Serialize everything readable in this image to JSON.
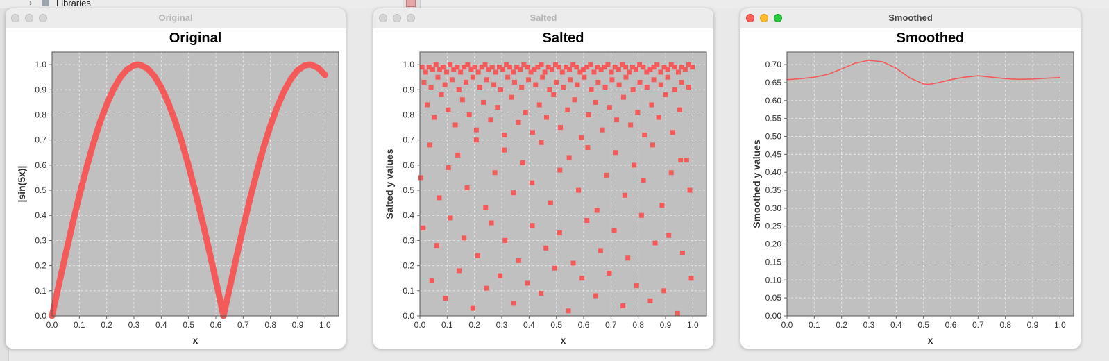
{
  "background": {
    "tree_item_label": "Libraries"
  },
  "colors": {
    "plot_bg": "#c0c0c0",
    "series": "#f55a5a",
    "grid": "#e6e6e6"
  },
  "windows": [
    {
      "title": "Original",
      "active": false
    },
    {
      "title": "Salted",
      "active": false
    },
    {
      "title": "Smoothed",
      "active": true
    }
  ],
  "chart_data": [
    {
      "type": "line",
      "title": "Original",
      "xlabel": "x",
      "ylabel": "|sin(5x)|",
      "xlim": [
        0,
        1.05
      ],
      "ylim": [
        0,
        1.05
      ],
      "x_ticks": [
        "0.0",
        "0.1",
        "0.2",
        "0.3",
        "0.4",
        "0.5",
        "0.6",
        "0.7",
        "0.8",
        "0.9",
        "1.0"
      ],
      "y_ticks": [
        "0.0",
        "0.1",
        "0.2",
        "0.3",
        "0.4",
        "0.5",
        "0.6",
        "0.7",
        "0.8",
        "0.9",
        "1.0"
      ],
      "grid": true,
      "series": [
        {
          "x": [
            0.0,
            0.025,
            0.05,
            0.075,
            0.1,
            0.125,
            0.15,
            0.175,
            0.2,
            0.225,
            0.25,
            0.275,
            0.3,
            0.314,
            0.325,
            0.35,
            0.375,
            0.4,
            0.425,
            0.45,
            0.475,
            0.5,
            0.525,
            0.55,
            0.575,
            0.6,
            0.628,
            0.65,
            0.675,
            0.7,
            0.725,
            0.75,
            0.775,
            0.8,
            0.825,
            0.85,
            0.875,
            0.9,
            0.925,
            0.942,
            0.95,
            0.975,
            1.0
          ],
          "y": [
            0.0,
            0.124,
            0.247,
            0.366,
            0.479,
            0.585,
            0.682,
            0.768,
            0.841,
            0.902,
            0.949,
            0.981,
            0.997,
            1.0,
            0.998,
            0.984,
            0.954,
            0.909,
            0.85,
            0.778,
            0.694,
            0.598,
            0.493,
            0.381,
            0.262,
            0.141,
            0.0,
            0.108,
            0.231,
            0.351,
            0.465,
            0.572,
            0.67,
            0.757,
            0.832,
            0.894,
            0.943,
            0.978,
            0.996,
            1.0,
            0.999,
            0.987,
            0.959
          ]
        }
      ]
    },
    {
      "type": "scatter",
      "title": "Salted",
      "xlabel": "x",
      "ylabel": "Salted y values",
      "xlim": [
        0,
        1.05
      ],
      "ylim": [
        0,
        1.05
      ],
      "x_ticks": [
        "0.0",
        "0.1",
        "0.2",
        "0.3",
        "0.4",
        "0.5",
        "0.6",
        "0.7",
        "0.8",
        "0.9",
        "1.0"
      ],
      "y_ticks": [
        "0.0",
        "0.1",
        "0.2",
        "0.3",
        "0.4",
        "0.5",
        "0.6",
        "0.7",
        "0.8",
        "0.9",
        "1.0"
      ],
      "grid": true,
      "series": [
        {
          "x": [
            0.008,
            0.021,
            0.034,
            0.047,
            0.059,
            0.072,
            0.085,
            0.098,
            0.111,
            0.124,
            0.137,
            0.149,
            0.162,
            0.175,
            0.188,
            0.201,
            0.214,
            0.227,
            0.239,
            0.252,
            0.265,
            0.278,
            0.291,
            0.304,
            0.317,
            0.329,
            0.342,
            0.355,
            0.368,
            0.381,
            0.394,
            0.407,
            0.419,
            0.432,
            0.445,
            0.458,
            0.471,
            0.484,
            0.497,
            0.509,
            0.522,
            0.535,
            0.548,
            0.561,
            0.574,
            0.587,
            0.599,
            0.612,
            0.625,
            0.638,
            0.651,
            0.664,
            0.677,
            0.689,
            0.702,
            0.715,
            0.728,
            0.741,
            0.754,
            0.767,
            0.779,
            0.792,
            0.805,
            0.818,
            0.831,
            0.844,
            0.857,
            0.869,
            0.882,
            0.895,
            0.908,
            0.921,
            0.934,
            0.947,
            0.959,
            0.972,
            0.985,
            0.998,
            0.015,
            0.041,
            0.066,
            0.092,
            0.118,
            0.143,
            0.169,
            0.194,
            0.22,
            0.245,
            0.271,
            0.296,
            0.322,
            0.347,
            0.373,
            0.398,
            0.424,
            0.449,
            0.475,
            0.5,
            0.526,
            0.551,
            0.577,
            0.602,
            0.628,
            0.653,
            0.679,
            0.704,
            0.73,
            0.755,
            0.781,
            0.806,
            0.832,
            0.857,
            0.883,
            0.908,
            0.934,
            0.959,
            0.985,
            0.027,
            0.053,
            0.079,
            0.104,
            0.13,
            0.156,
            0.181,
            0.207,
            0.233,
            0.259,
            0.284,
            0.31,
            0.336,
            0.361,
            0.387,
            0.413,
            0.438,
            0.464,
            0.49,
            0.515,
            0.541,
            0.567,
            0.592,
            0.618,
            0.644,
            0.669,
            0.695,
            0.721,
            0.746,
            0.772,
            0.798,
            0.823,
            0.849,
            0.875,
            0.9,
            0.926,
            0.952,
            0.977,
            0.003,
            0.037,
            0.071,
            0.105,
            0.139,
            0.173,
            0.207,
            0.241,
            0.275,
            0.309,
            0.343,
            0.377,
            0.411,
            0.445,
            0.479,
            0.513,
            0.547,
            0.581,
            0.615,
            0.649,
            0.683,
            0.717,
            0.751,
            0.785,
            0.819,
            0.853,
            0.887,
            0.921,
            0.955,
            0.989,
            0.012,
            0.062,
            0.112,
            0.162,
            0.212,
            0.262,
            0.312,
            0.362,
            0.412,
            0.462,
            0.512,
            0.562,
            0.612,
            0.662,
            0.712,
            0.762,
            0.812,
            0.862,
            0.912,
            0.962,
            0.044,
            0.094,
            0.144,
            0.194,
            0.244,
            0.294,
            0.344,
            0.394,
            0.444,
            0.494,
            0.544,
            0.594,
            0.644,
            0.694,
            0.744,
            0.794,
            0.844,
            0.894,
            0.944,
            0.994
          ],
          "y": [
            0.99,
            0.97,
            0.99,
            0.98,
            1.0,
            0.98,
            0.99,
            0.97,
            1.0,
            0.98,
            0.99,
            0.97,
            0.99,
            1.0,
            0.98,
            0.99,
            0.97,
            0.99,
            1.0,
            0.98,
            0.99,
            0.97,
            0.99,
            0.98,
            1.0,
            0.99,
            0.97,
            0.99,
            0.98,
            1.0,
            0.99,
            0.97,
            0.98,
            0.99,
            1.0,
            0.97,
            0.99,
            0.98,
            1.0,
            0.99,
            0.97,
            0.99,
            0.98,
            1.0,
            0.99,
            0.97,
            0.98,
            0.99,
            1.0,
            0.97,
            0.99,
            0.98,
            0.99,
            1.0,
            0.97,
            0.99,
            0.98,
            1.0,
            0.99,
            0.97,
            0.99,
            0.98,
            1.0,
            0.99,
            0.97,
            0.98,
            0.99,
            1.0,
            0.97,
            0.99,
            0.98,
            1.0,
            0.99,
            0.97,
            0.99,
            0.98,
            1.0,
            0.99,
            0.93,
            0.91,
            0.95,
            0.92,
            0.94,
            0.9,
            0.93,
            0.95,
            0.91,
            0.94,
            0.92,
            0.9,
            0.95,
            0.93,
            0.91,
            0.94,
            0.92,
            0.95,
            0.9,
            0.93,
            0.91,
            0.94,
            0.92,
            0.95,
            0.9,
            0.93,
            0.91,
            0.94,
            0.92,
            0.95,
            0.9,
            0.93,
            0.91,
            0.94,
            0.92,
            0.95,
            0.9,
            0.93,
            0.91,
            0.84,
            0.79,
            0.88,
            0.82,
            0.76,
            0.86,
            0.8,
            0.74,
            0.85,
            0.78,
            0.83,
            0.72,
            0.87,
            0.77,
            0.81,
            0.73,
            0.84,
            0.79,
            0.88,
            0.75,
            0.82,
            0.86,
            0.71,
            0.8,
            0.85,
            0.74,
            0.83,
            0.78,
            0.87,
            0.76,
            0.81,
            0.72,
            0.84,
            0.79,
            0.88,
            0.73,
            0.82,
            0.62,
            0.55,
            0.68,
            0.47,
            0.59,
            0.64,
            0.51,
            0.7,
            0.43,
            0.57,
            0.66,
            0.49,
            0.61,
            0.53,
            0.69,
            0.45,
            0.58,
            0.63,
            0.5,
            0.67,
            0.42,
            0.56,
            0.65,
            0.48,
            0.6,
            0.54,
            0.68,
            0.44,
            0.57,
            0.62,
            0.5,
            0.35,
            0.28,
            0.39,
            0.31,
            0.24,
            0.37,
            0.3,
            0.22,
            0.36,
            0.27,
            0.33,
            0.21,
            0.38,
            0.26,
            0.34,
            0.23,
            0.4,
            0.29,
            0.32,
            0.25,
            0.14,
            0.07,
            0.18,
            0.03,
            0.11,
            0.16,
            0.05,
            0.13,
            0.09,
            0.19,
            0.02,
            0.15,
            0.08,
            0.17,
            0.04,
            0.12,
            0.06,
            0.1,
            0.01,
            0.15
          ]
        }
      ]
    },
    {
      "type": "line",
      "title": "Smoothed",
      "xlabel": "x",
      "ylabel": "Smoothed y values",
      "xlim": [
        0,
        1.05
      ],
      "ylim": [
        0,
        0.735
      ],
      "x_ticks": [
        "0.0",
        "0.1",
        "0.2",
        "0.3",
        "0.4",
        "0.5",
        "0.6",
        "0.7",
        "0.8",
        "0.9",
        "1.0"
      ],
      "y_ticks": [
        "0.00",
        "0.05",
        "0.10",
        "0.15",
        "0.20",
        "0.25",
        "0.30",
        "0.35",
        "0.40",
        "0.45",
        "0.50",
        "0.55",
        "0.60",
        "0.65",
        "0.70"
      ],
      "grid": true,
      "series": [
        {
          "x": [
            0.0,
            0.05,
            0.1,
            0.15,
            0.2,
            0.25,
            0.3,
            0.35,
            0.4,
            0.45,
            0.5,
            0.52,
            0.55,
            0.6,
            0.65,
            0.7,
            0.75,
            0.8,
            0.85,
            0.9,
            0.95,
            1.0
          ],
          "y": [
            0.658,
            0.661,
            0.665,
            0.673,
            0.688,
            0.704,
            0.712,
            0.708,
            0.69,
            0.663,
            0.646,
            0.645,
            0.649,
            0.658,
            0.665,
            0.669,
            0.665,
            0.661,
            0.659,
            0.66,
            0.662,
            0.664
          ]
        }
      ]
    }
  ]
}
